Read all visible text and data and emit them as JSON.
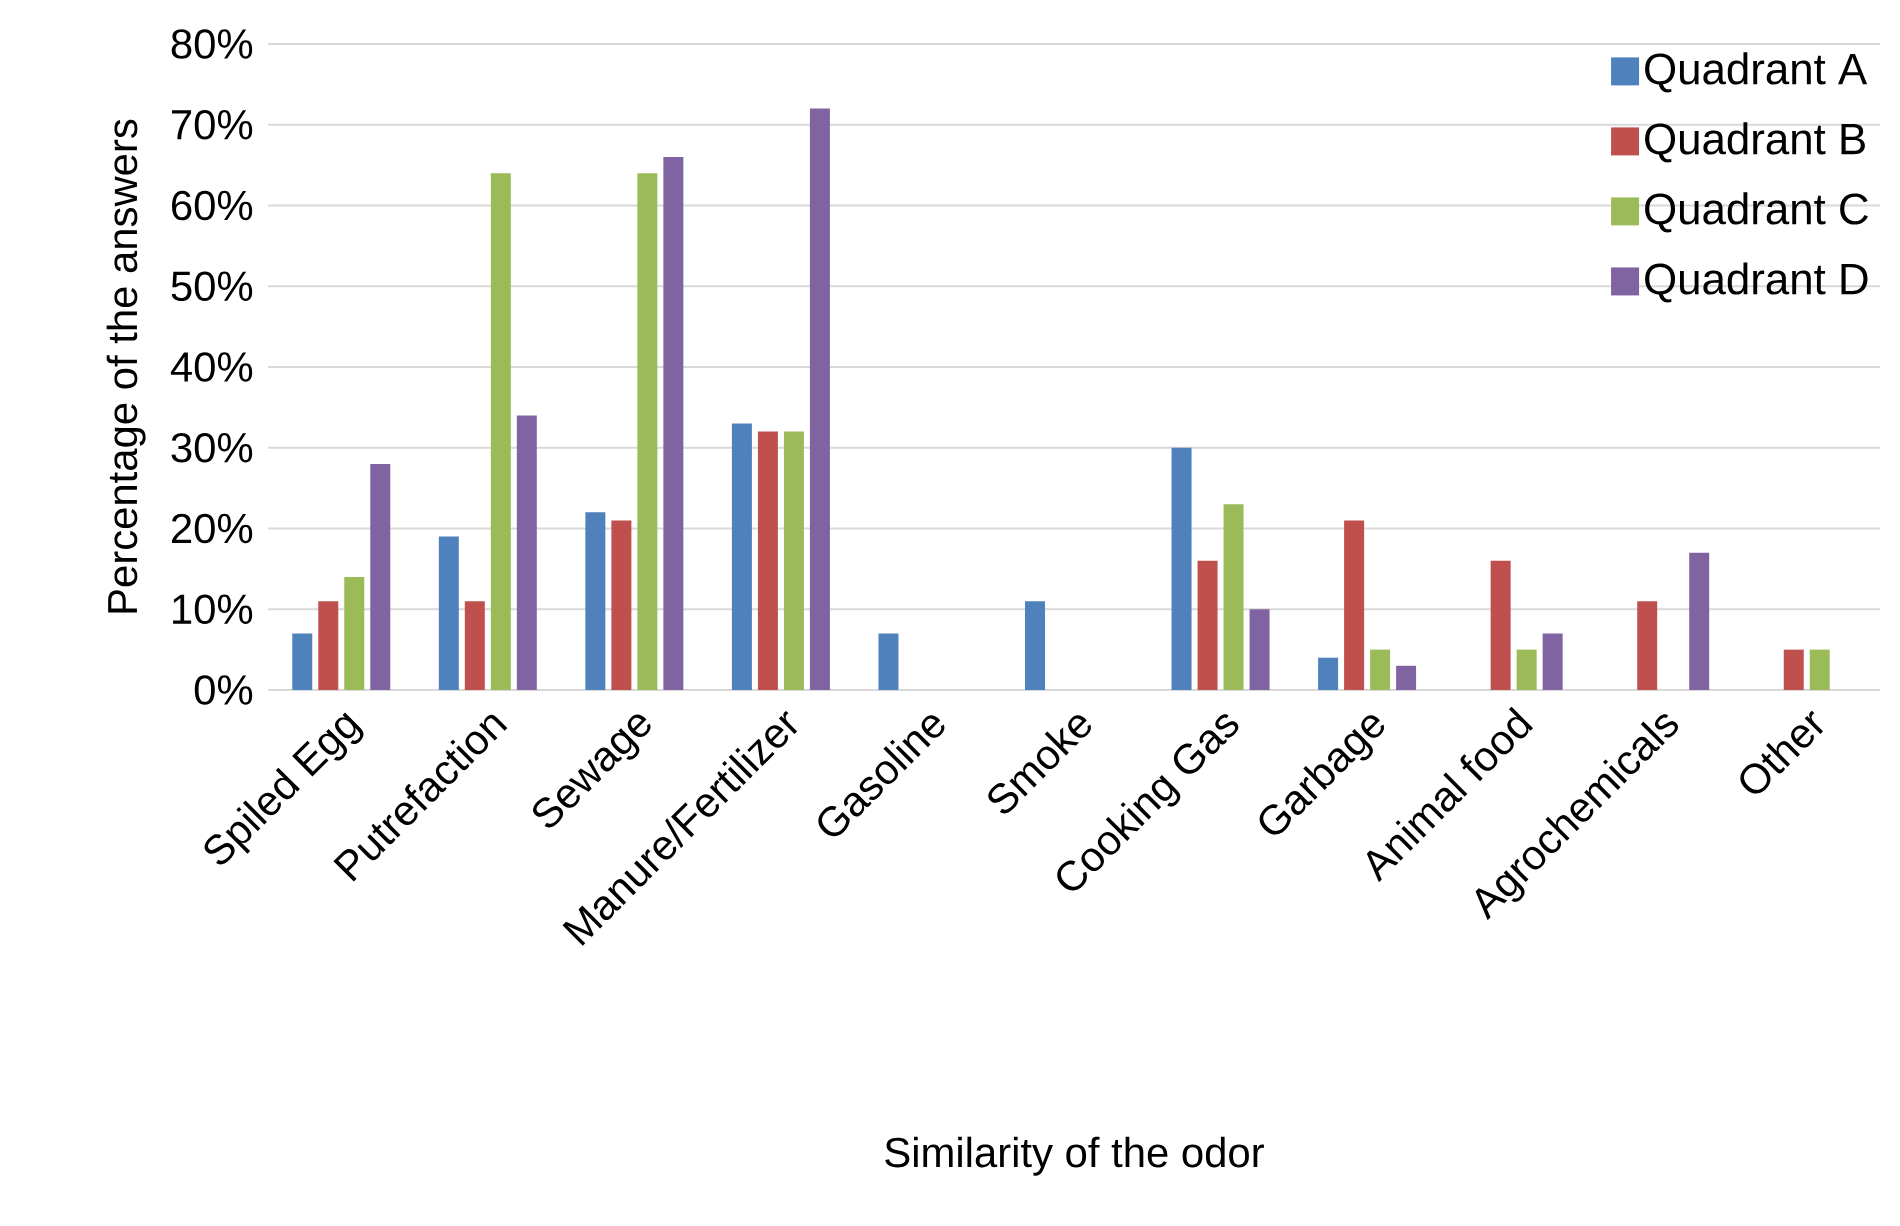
{
  "chart_data": {
    "type": "bar",
    "xlabel": "Similarity of the odor",
    "ylabel": "Percentage of the answers",
    "categories": [
      "Spiled Egg",
      "Putrefaction",
      "Sewage",
      "Manure/Fertilizer",
      "Gasoline",
      "Smoke",
      "Cooking Gas",
      "Garbage",
      "Animal food",
      "Agrochemicals",
      "Other"
    ],
    "series": [
      {
        "name": "Quadrant A",
        "color": "#4f81bd",
        "values": [
          7,
          19,
          22,
          33,
          7,
          11,
          30,
          4,
          0,
          0,
          0
        ]
      },
      {
        "name": "Quadrant B",
        "color": "#c0504d",
        "values": [
          11,
          11,
          21,
          32,
          0,
          0,
          16,
          21,
          16,
          11,
          5
        ]
      },
      {
        "name": "Quadrant C",
        "color": "#9bbb59",
        "values": [
          14,
          64,
          64,
          32,
          0,
          0,
          23,
          5,
          5,
          0,
          5
        ]
      },
      {
        "name": "Quadrant D",
        "color": "#8064a2",
        "values": [
          28,
          34,
          66,
          72,
          0,
          0,
          10,
          3,
          7,
          17,
          0
        ]
      }
    ],
    "ylim": [
      0,
      80
    ],
    "yticks": [
      {
        "value": 0,
        "label": "0%"
      },
      {
        "value": 10,
        "label": "10%"
      },
      {
        "value": 20,
        "label": "20%"
      },
      {
        "value": 30,
        "label": "30%"
      },
      {
        "value": 40,
        "label": "40%"
      },
      {
        "value": 50,
        "label": "50%"
      },
      {
        "value": 60,
        "label": "60%"
      },
      {
        "value": 70,
        "label": "70%"
      },
      {
        "value": 80,
        "label": "80%"
      }
    ],
    "grid": "y",
    "legend": "top right"
  }
}
